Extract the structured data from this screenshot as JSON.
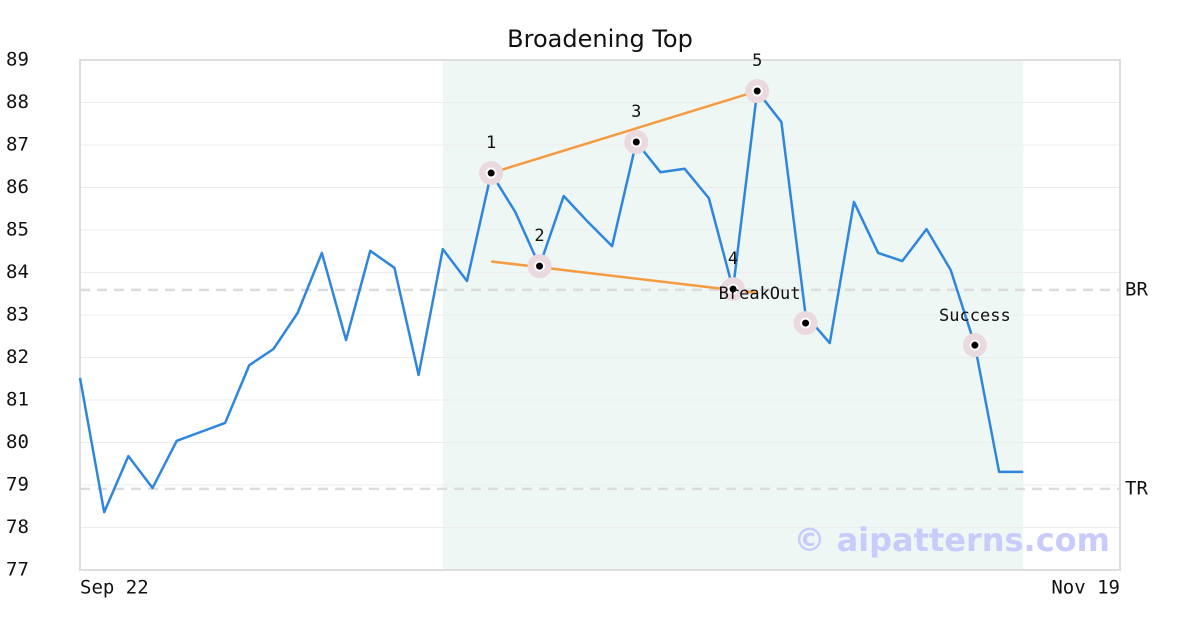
{
  "chart_data": {
    "type": "line",
    "title": "Broadening Top",
    "x": [
      0,
      1,
      2,
      3,
      4,
      5,
      6,
      7,
      8,
      9,
      10,
      11,
      12,
      13,
      14,
      15,
      16,
      17,
      18,
      19,
      20,
      21,
      22,
      23,
      24,
      25,
      26,
      27,
      28,
      29,
      30,
      31,
      32,
      33,
      34,
      35,
      36,
      37,
      38,
      39
    ],
    "values": [
      81.52,
      78.36,
      79.68,
      78.93,
      80.04,
      80.25,
      80.46,
      81.82,
      82.2,
      83.05,
      84.46,
      82.41,
      84.51,
      84.11,
      81.59,
      84.55,
      83.8,
      86.34,
      85.42,
      84.15,
      85.8,
      85.19,
      84.62,
      87.07,
      86.36,
      86.44,
      85.75,
      83.61,
      88.27,
      87.54,
      83.0,
      82.34,
      85.66,
      84.46,
      84.27,
      85.02,
      84.06,
      82.29,
      79.31,
      79.31
    ],
    "color": "#2e86de",
    "xlim": [
      0,
      43
    ],
    "xticks": [
      {
        "value": 0,
        "label": "Sep 22"
      },
      {
        "value": 43,
        "label": "Nov 19"
      }
    ],
    "ylim": [
      77,
      89
    ],
    "yticks": [
      77,
      78,
      79,
      80,
      81,
      82,
      83,
      84,
      85,
      86,
      87,
      88,
      89
    ],
    "grid": true,
    "shaded": {
      "x": [
        15,
        39
      ],
      "color": "#eff7f4"
    },
    "levels": [
      {
        "label": "BR",
        "value": 83.59
      },
      {
        "label": "TR",
        "value": 78.91
      }
    ],
    "trendlines": [
      {
        "x": [
          17,
          28
        ],
        "y": [
          86.34,
          88.27
        ]
      },
      {
        "x": [
          17,
          28
        ],
        "y": [
          84.26,
          83.52
        ]
      }
    ],
    "trendline_color": "#f59b42",
    "points": [
      {
        "label": "1",
        "x": 17,
        "y": 86.34
      },
      {
        "label": "2",
        "x": 19,
        "y": 84.15
      },
      {
        "label": "3",
        "x": 23,
        "y": 87.07
      },
      {
        "label": "4",
        "x": 27,
        "y": 83.61
      },
      {
        "label": "5",
        "x": 28,
        "y": 88.27
      },
      {
        "label": "BreakOut",
        "x": 30,
        "y": 82.81
      },
      {
        "label": "Success",
        "x": 37,
        "y": 82.29
      }
    ],
    "watermark": "© aipatterns.com"
  }
}
